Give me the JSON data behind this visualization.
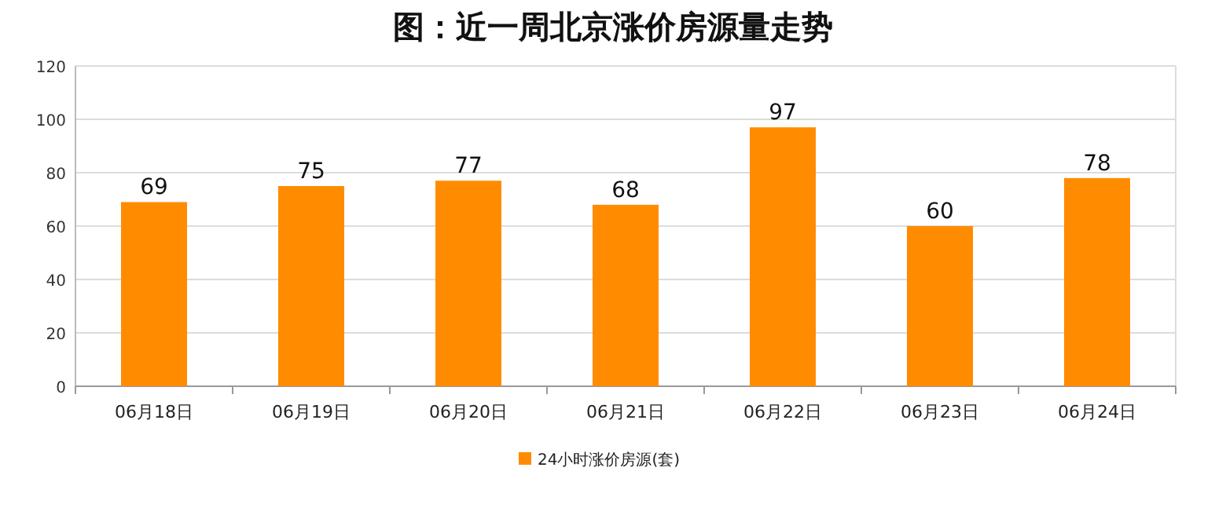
{
  "chart_data": {
    "type": "bar",
    "title": "图：近一周北京涨价房源量走势",
    "categories": [
      "06月18日",
      "06月19日",
      "06月20日",
      "06月21日",
      "06月22日",
      "06月23日",
      "06月24日"
    ],
    "series": [
      {
        "name": "24小时涨价房源(套)",
        "color": "#ff8c00",
        "values": [
          69,
          75,
          77,
          68,
          97,
          60,
          78
        ]
      }
    ],
    "ylim": [
      0,
      120
    ],
    "yticks": [
      0,
      20,
      40,
      60,
      80,
      100,
      120
    ],
    "grid": "y",
    "legend": "bottom",
    "data_labels": true
  }
}
